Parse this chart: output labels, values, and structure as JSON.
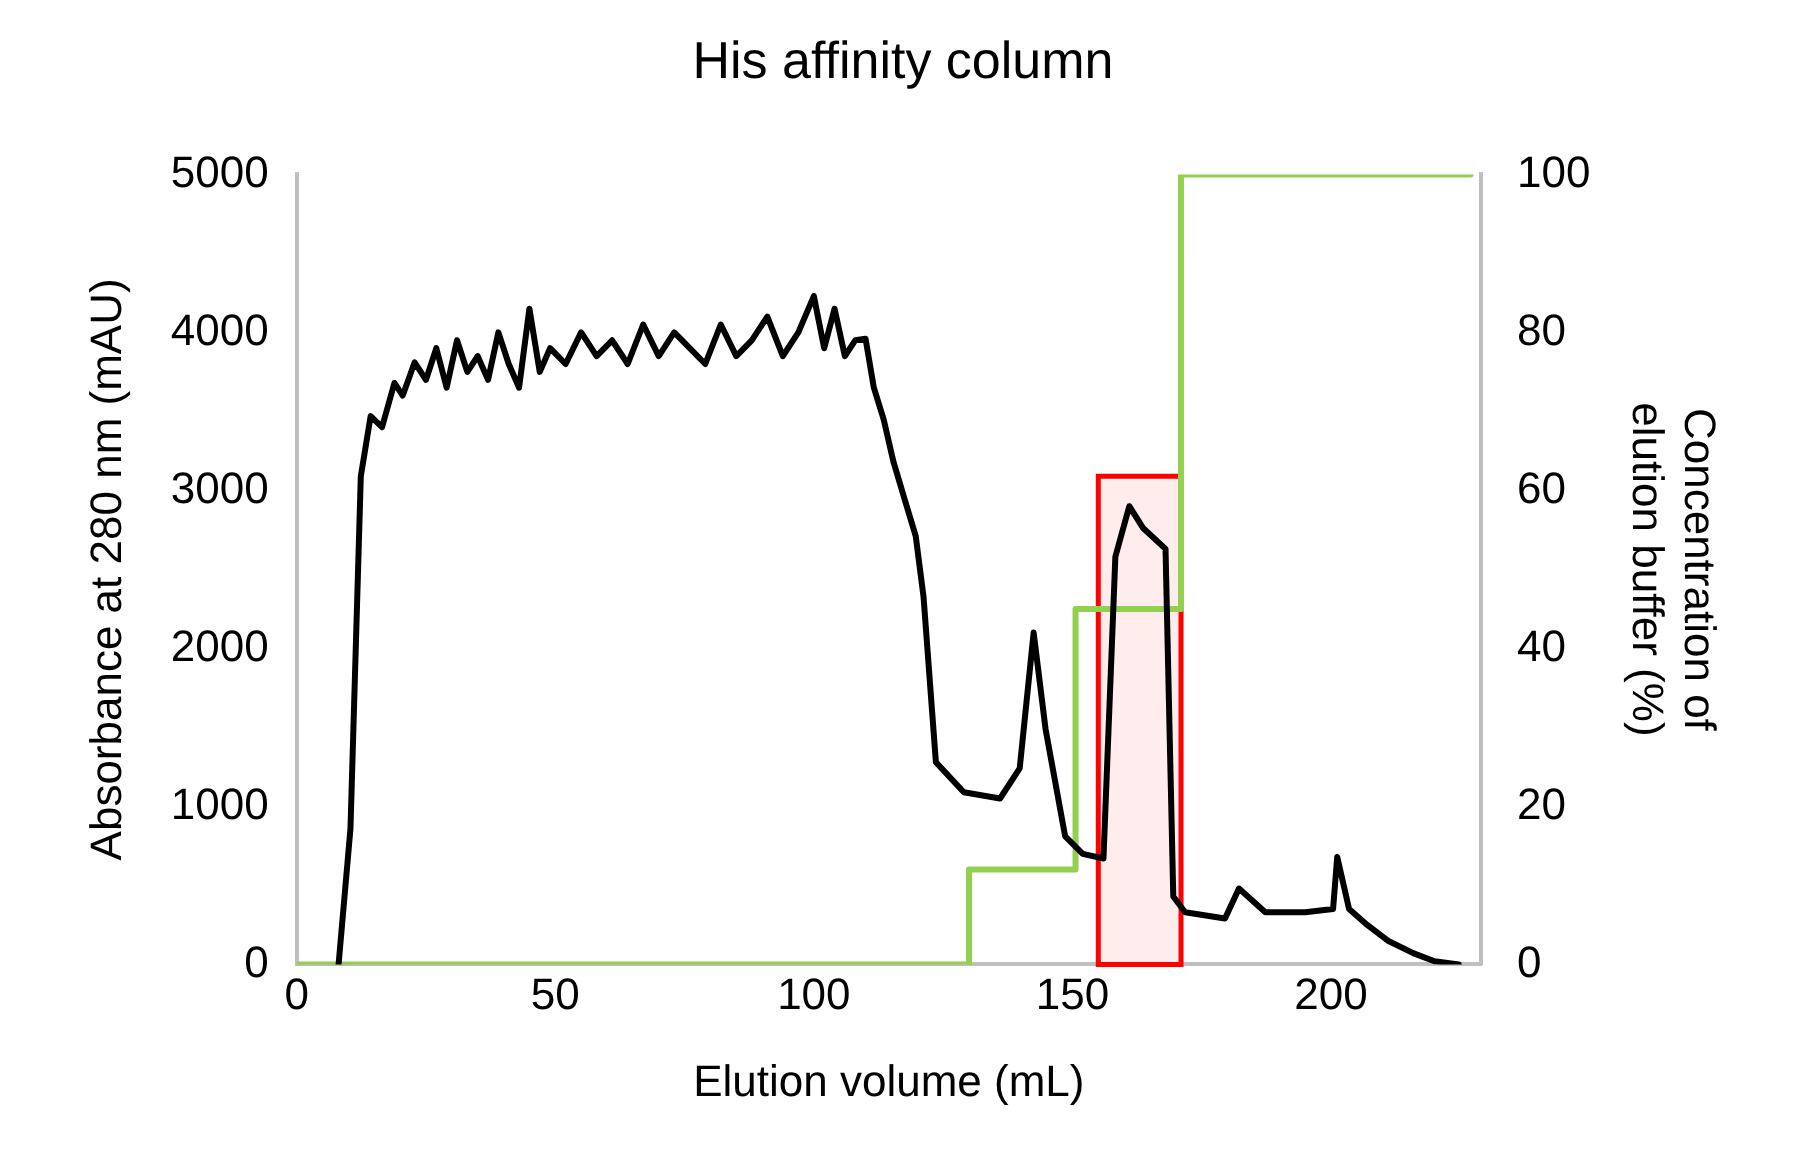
{
  "chart_data": {
    "type": "line",
    "title": "His affinity column",
    "xlabel": "Elution volume (mL)",
    "ylabel": "Absorbance at 280 nm (mAU)",
    "y2label": "Concentration of elution buffer (%)",
    "xlim": [
      0,
      229
    ],
    "xticks": [
      0,
      50,
      100,
      150,
      200
    ],
    "ylim": [
      0,
      5000
    ],
    "yticks": [
      0,
      1000,
      2000,
      3000,
      4000,
      5000
    ],
    "y2lim": [
      0,
      100
    ],
    "y2ticks": [
      0,
      20,
      40,
      60,
      80,
      100
    ],
    "grid": false,
    "legend": false,
    "marker": "none",
    "line_style": "solid",
    "series": [
      {
        "color": "#000000",
        "x": [
          8.1,
          10.4,
          12.4,
          14.3,
          16.5,
          18.9,
          20.5,
          22.8,
          25,
          27,
          29,
          31,
          33,
          35,
          37,
          39,
          41,
          43,
          45,
          47,
          49,
          52,
          55,
          58,
          61,
          64,
          67,
          70,
          73,
          76,
          79,
          82,
          85,
          88,
          91,
          94,
          97,
          100,
          102,
          104,
          106,
          108,
          110,
          111.6,
          113.5,
          115.4,
          117.5,
          119.7,
          121.2,
          123.6,
          129,
          136,
          139.8,
          142.5,
          144.8,
          148.6,
          152,
          156,
          158.3,
          161,
          163.7,
          168,
          169.5,
          171.8,
          179.5,
          182.2,
          187.3,
          195,
          200.4,
          201.2,
          203.5,
          207,
          211,
          216,
          220,
          224.7
        ],
        "values": [
          0,
          860,
          3090,
          3470,
          3400,
          3680,
          3600,
          3810,
          3700,
          3900,
          3650,
          3950,
          3750,
          3850,
          3700,
          4000,
          3800,
          3650,
          4150,
          3750,
          3900,
          3800,
          4000,
          3850,
          3950,
          3800,
          4050,
          3850,
          4000,
          3900,
          3800,
          4050,
          3850,
          3950,
          4100,
          3850,
          4000,
          4230,
          3900,
          4150,
          3850,
          3950,
          3960,
          3650,
          3450,
          3180,
          2950,
          2710,
          2330,
          1280,
          1090,
          1050,
          1240,
          2100,
          1490,
          810,
          700,
          670,
          2580,
          2900,
          2760,
          2630,
          430,
          330,
          290,
          480,
          330,
          330,
          350,
          680,
          350,
          250,
          150,
          70,
          20,
          0
        ]
      },
      {
        "type": "step",
        "axis": "y2",
        "color": "#92d050",
        "x": [
          0,
          130,
          150.6,
          171,
          227
        ],
        "values": [
          0,
          12,
          45,
          100,
          100
        ]
      }
    ],
    "bands": [
      {
        "axis": "x",
        "from": 155,
        "to": 171,
        "color": "#ff0000"
      }
    ]
  }
}
